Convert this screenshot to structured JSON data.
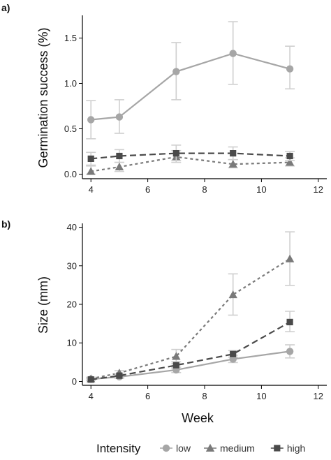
{
  "chart_data": [
    {
      "panel_label": "a)",
      "type": "line",
      "xlabel": "",
      "ylabel": "Germination success (%)",
      "xlim": [
        3.7,
        12.3
      ],
      "ylim": [
        -0.05,
        1.75
      ],
      "xticks": [
        4,
        6,
        8,
        10,
        12
      ],
      "yticks": [
        0.0,
        0.5,
        1.0,
        1.5
      ],
      "ytick_labels": [
        "0.0",
        "0.5",
        "1.0",
        "1.5"
      ],
      "x": [
        4,
        5,
        7,
        9,
        11
      ],
      "series": [
        {
          "name": "low",
          "marker": "circle",
          "dash": "solid",
          "color": "#a6a6a6",
          "values": [
            0.6,
            0.63,
            1.13,
            1.33,
            1.16
          ],
          "err_low": [
            0.39,
            0.45,
            0.82,
            0.99,
            0.94
          ],
          "err_high": [
            0.81,
            0.82,
            1.45,
            1.68,
            1.41
          ]
        },
        {
          "name": "medium",
          "marker": "triangle",
          "dash": "dotted",
          "color": "#7a7a7a",
          "values": [
            0.03,
            0.08,
            0.19,
            0.11,
            0.13
          ],
          "err_low": [
            0.0,
            0.03,
            0.13,
            0.07,
            0.09
          ],
          "err_high": [
            0.09,
            0.13,
            0.26,
            0.16,
            0.18
          ]
        },
        {
          "name": "high",
          "marker": "square",
          "dash": "dashed",
          "color": "#4a4a4a",
          "values": [
            0.17,
            0.2,
            0.23,
            0.23,
            0.2
          ],
          "err_low": [
            0.1,
            0.13,
            0.15,
            0.16,
            0.15
          ],
          "err_high": [
            0.24,
            0.27,
            0.32,
            0.3,
            0.25
          ]
        }
      ]
    },
    {
      "panel_label": "b)",
      "type": "line",
      "xlabel": "Week",
      "ylabel": "Size (mm)",
      "xlim": [
        3.7,
        12.3
      ],
      "ylim": [
        -1,
        41
      ],
      "xticks": [
        4,
        6,
        8,
        10,
        12
      ],
      "yticks": [
        0,
        10,
        20,
        30,
        40
      ],
      "ytick_labels": [
        "0",
        "10",
        "20",
        "30",
        "40"
      ],
      "x": [
        4,
        5,
        7,
        9,
        11
      ],
      "series": [
        {
          "name": "low",
          "marker": "circle",
          "dash": "solid",
          "color": "#a6a6a6",
          "values": [
            0.6,
            1.2,
            3.0,
            5.8,
            7.8
          ],
          "err_low": [
            0.3,
            0.8,
            2.3,
            4.9,
            6.1
          ],
          "err_high": [
            0.9,
            1.6,
            3.7,
            6.8,
            9.5
          ]
        },
        {
          "name": "medium",
          "marker": "triangle",
          "dash": "dotted",
          "color": "#7a7a7a",
          "values": [
            0.7,
            2.2,
            6.5,
            22.5,
            31.8
          ],
          "err_low": [
            0.4,
            1.6,
            4.6,
            17.2,
            24.9
          ],
          "err_high": [
            1.1,
            2.8,
            8.3,
            27.9,
            38.8
          ]
        },
        {
          "name": "high",
          "marker": "square",
          "dash": "dashed",
          "color": "#4a4a4a",
          "values": [
            0.5,
            1.5,
            4.2,
            7.1,
            15.4
          ],
          "err_low": [
            0.3,
            1.1,
            3.4,
            6.3,
            12.9
          ],
          "err_high": [
            0.8,
            2.0,
            5.1,
            8.0,
            18.2
          ]
        }
      ]
    }
  ],
  "legend": {
    "title": "Intensity",
    "position": "bottom",
    "items": [
      {
        "label": "low",
        "marker": "circle",
        "color": "#a6a6a6"
      },
      {
        "label": "medium",
        "marker": "triangle",
        "color": "#7a7a7a"
      },
      {
        "label": "high",
        "marker": "square",
        "color": "#4a4a4a"
      }
    ]
  }
}
